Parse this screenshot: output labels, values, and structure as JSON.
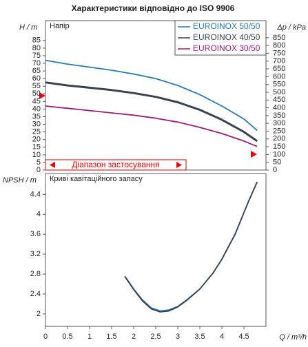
{
  "chart_data": [
    {
      "type": "line",
      "title": "Характеристики відповідно до ISO 9906",
      "panel_label": "Напір",
      "ylabel": "H / m",
      "y2label": "Δp / kPa",
      "annotation": "Діапазон застосування",
      "legend": "upper right",
      "x": [
        0,
        0.5,
        1,
        1.5,
        2,
        2.5,
        3,
        3.5,
        4,
        4.5,
        4.8
      ],
      "xlim": [
        0,
        5
      ],
      "series": [
        {
          "name": "EUROINOX 50/50",
          "color": "#2878b5",
          "values": [
            72,
            69.5,
            67.5,
            65.5,
            63,
            60,
            55.5,
            49.5,
            42,
            33.5,
            26
          ]
        },
        {
          "name": "EUROINOX 40/50",
          "color": "#39424e",
          "values": [
            57.5,
            55.5,
            54,
            52.5,
            50.5,
            48,
            44.5,
            39.5,
            33,
            25,
            19
          ]
        },
        {
          "name": "EUROINOX 30/50",
          "color": "#9b1c7c",
          "values": [
            42,
            40.5,
            39,
            37.5,
            36,
            34,
            31.5,
            28,
            24,
            19,
            15.5
          ]
        }
      ],
      "ylim": [
        0,
        98
      ],
      "yticks": [
        0,
        5,
        10,
        15,
        20,
        25,
        30,
        35,
        40,
        45,
        50,
        55,
        60,
        65,
        70,
        75,
        80,
        85
      ],
      "y2lim": [
        0,
        960
      ],
      "y2ticks": [
        0,
        50,
        100,
        150,
        200,
        250,
        300,
        350,
        400,
        450,
        500,
        550,
        600,
        650,
        700,
        750,
        800,
        850
      ]
    },
    {
      "type": "line",
      "panel_label": "Криві кавітаційного запасу",
      "ylabel": "NPSH / m",
      "xlabel": "Q / m³/h",
      "x": [
        1.8,
        2,
        2.2,
        2.4,
        2.6,
        2.8,
        3,
        3.2,
        3.5,
        3.8,
        4,
        4.3,
        4.6,
        4.8
      ],
      "xlim": [
        0,
        5
      ],
      "xticks": [
        0,
        0.5,
        1,
        1.5,
        2,
        2.5,
        3,
        3.5,
        4,
        4.5
      ],
      "series": [
        {
          "color": "#2878b5",
          "values": [
            2.76,
            2.5,
            2.28,
            2.12,
            2.06,
            2.08,
            2.15,
            2.28,
            2.5,
            2.82,
            3.1,
            3.6,
            4.25,
            4.65
          ]
        },
        {
          "color": "#39424e",
          "values": [
            2.75,
            2.49,
            2.26,
            2.1,
            2.04,
            2.06,
            2.14,
            2.27,
            2.5,
            2.82,
            3.1,
            3.6,
            4.25,
            4.65
          ]
        }
      ],
      "ylim": [
        1.75,
        4.82
      ],
      "yticks": [
        2,
        2.4,
        2.8,
        3.2,
        3.6,
        4,
        4.4
      ]
    }
  ]
}
